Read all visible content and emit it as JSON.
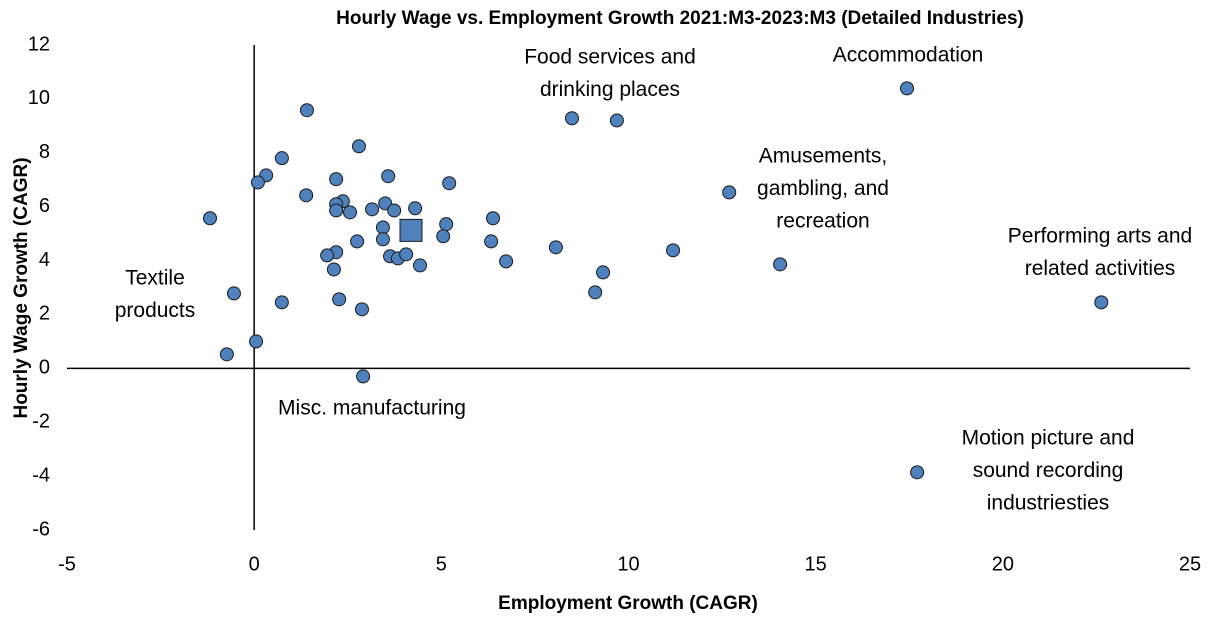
{
  "chart_data": {
    "type": "scatter",
    "title": "Hourly Wage vs. Employment Growth 2021:M3-2023:M3 (Detailed Industries)",
    "x_label": "Employment Growth (CAGR)",
    "y_label": "Hourly Wage Growth (CAGR)",
    "xlim": [
      -5,
      25
    ],
    "xticks": [
      -5,
      0,
      5,
      10,
      15,
      20,
      25
    ],
    "ylim": [
      -6,
      12
    ],
    "yticks": [
      -6,
      -4,
      -2,
      0,
      2,
      4,
      6,
      8,
      10,
      12
    ],
    "grid": false,
    "series": [
      {
        "marker": "circle",
        "color": "#4f81bd",
        "x": [
          17.44,
          9.69,
          8.49,
          1.41,
          0.74,
          0.32,
          0.1,
          2.8,
          2.19,
          3.58,
          5.21,
          1.39,
          2.37,
          2.19,
          2.19,
          2.56,
          3.15,
          3.5,
          3.74,
          4.3,
          3.44,
          3.44,
          5.13,
          5.05,
          6.38,
          6.33,
          -1.18,
          2.75,
          2.19,
          1.95,
          3.63,
          3.84,
          4.06,
          4.43,
          2.13,
          6.73,
          8.06,
          11.19,
          12.69,
          14.05,
          9.32,
          9.11,
          22.63,
          -0.54,
          0.74,
          2.27,
          2.88,
          -0.73,
          0.05,
          2.91,
          17.71
        ],
        "values": [
          10.39,
          9.2,
          9.28,
          9.58,
          7.8,
          7.16,
          6.9,
          8.24,
          7.02,
          7.13,
          6.87,
          6.42,
          6.2,
          6.09,
          5.86,
          5.79,
          5.9,
          6.12,
          5.86,
          5.94,
          5.23,
          4.79,
          5.35,
          4.9,
          5.57,
          4.71,
          5.57,
          4.71,
          4.31,
          4.19,
          4.16,
          4.08,
          4.23,
          3.82,
          3.67,
          3.97,
          4.49,
          4.38,
          6.53,
          3.86,
          3.56,
          2.82,
          2.45,
          2.78,
          2.45,
          2.56,
          2.19,
          0.52,
          1.0,
          -0.3,
          -3.86
        ]
      },
      {
        "marker": "square",
        "color": "#4f81bd",
        "x": [
          4.19
        ],
        "values": [
          5.12
        ]
      }
    ],
    "annotations": [
      {
        "lines": [
          "Textile",
          "products"
        ]
      },
      {
        "lines": [
          "Misc. manufacturing"
        ]
      },
      {
        "lines": [
          "Food services and",
          "drinking places"
        ]
      },
      {
        "lines": [
          "Accommodation"
        ]
      },
      {
        "lines": [
          "Amusements,",
          "gambling, and",
          "recreation"
        ]
      },
      {
        "lines": [
          "Performing arts and",
          "related activities"
        ]
      },
      {
        "lines": [
          "Motion picture and",
          "sound recording",
          "industriesties"
        ]
      }
    ]
  }
}
